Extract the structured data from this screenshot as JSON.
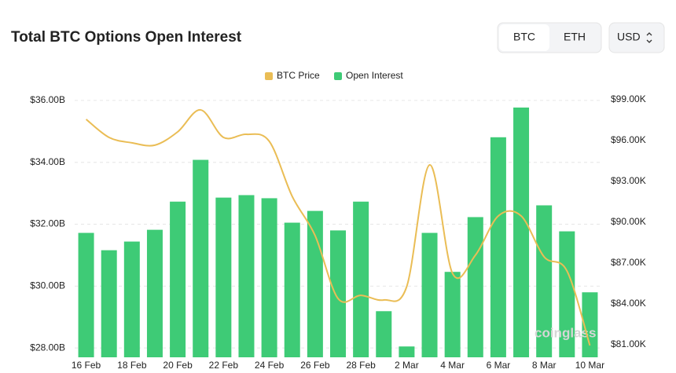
{
  "ui": {
    "tabs": [
      "BTC",
      "ETH"
    ],
    "currency": "USD"
  },
  "chart_data": {
    "type": "bar",
    "title": "Total BTC Options Open Interest",
    "watermark": "coinglass",
    "categories": [
      "16 Feb",
      null,
      "18 Feb",
      null,
      "20 Feb",
      null,
      "22 Feb",
      null,
      "24 Feb",
      null,
      "26 Feb",
      null,
      "28 Feb",
      null,
      "2 Mar",
      null,
      "4 Mar",
      null,
      "6 Mar",
      null,
      "8 Mar",
      null,
      "10 Mar"
    ],
    "series": [
      {
        "name": "BTC Price",
        "type": "line",
        "axis": "y2",
        "color": "#eabd55",
        "values": [
          97.56,
          96.23,
          95.83,
          95.66,
          96.64,
          98.25,
          96.23,
          96.46,
          95.94,
          91.9,
          89.02,
          84.4,
          84.63,
          84.29,
          85.27,
          94.21,
          86.25,
          87.58,
          90.46,
          90.46,
          87.46,
          86.42,
          80.95
        ]
      },
      {
        "name": "Open Interest",
        "type": "bar",
        "color": "#3ecb76",
        "values": [
          31.72,
          31.16,
          31.44,
          31.82,
          32.73,
          34.08,
          32.86,
          32.94,
          32.84,
          32.05,
          32.43,
          31.8,
          32.73,
          29.19,
          28.05,
          31.72,
          30.46,
          32.23,
          34.81,
          35.77,
          32.61,
          31.77,
          29.8
        ]
      }
    ],
    "ylim": [
      27.7,
      36.2
    ],
    "yticks": [
      {
        "value": 28,
        "label": "$28.00B"
      },
      {
        "value": 30,
        "label": "$30.00B"
      },
      {
        "value": 32,
        "label": "$32.00B"
      },
      {
        "value": 34,
        "label": "$34.00B"
      },
      {
        "value": 36,
        "label": "$36.00B"
      }
    ],
    "y2lim": [
      80.08,
      99.4
    ],
    "y2ticks": [
      {
        "value": 81,
        "label": "$81.00K"
      },
      {
        "value": 84,
        "label": "$84.00K"
      },
      {
        "value": 87,
        "label": "$87.00K"
      },
      {
        "value": 90,
        "label": "$90.00K"
      },
      {
        "value": 93,
        "label": "$93.00K"
      },
      {
        "value": 96,
        "label": "$96.00K"
      },
      {
        "value": 99,
        "label": "$99.00K"
      }
    ],
    "grid": true
  }
}
